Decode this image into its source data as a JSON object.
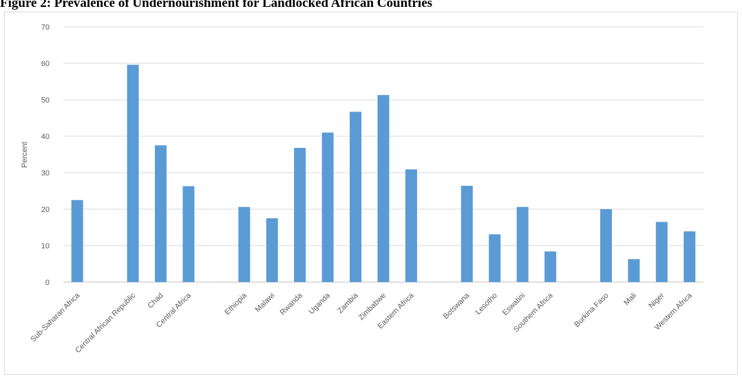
{
  "title": "Figure 2: Prevalence of Undernourishment for Landlocked African Countries",
  "chart_data": {
    "type": "bar",
    "title": "",
    "xlabel": "",
    "ylabel": "Percent",
    "ylim": [
      0,
      70
    ],
    "yticks": [
      0,
      10,
      20,
      30,
      40,
      50,
      60,
      70
    ],
    "grid": true,
    "bar_color": "#5b9bd5",
    "categories": [
      "Sub-Saharan Africa",
      "",
      "Central African Republic",
      "Chad",
      "Central Africa",
      "",
      "Ethiopia",
      "Malawi",
      "Rwanda",
      "Uganda",
      "Zambia",
      "Zimbabwe",
      "Eastern Africa",
      "",
      "Botswana",
      "Lesotho",
      "Eswatini",
      "Southern Africa",
      "",
      "Burkina Faso",
      "Mali",
      "Niger",
      "Western Africa"
    ],
    "values": [
      22.5,
      null,
      59.6,
      37.5,
      26.3,
      null,
      20.6,
      17.5,
      36.8,
      41.0,
      46.7,
      51.3,
      30.9,
      null,
      26.4,
      13.1,
      20.6,
      8.4,
      null,
      20.0,
      6.3,
      16.5,
      13.9
    ]
  }
}
